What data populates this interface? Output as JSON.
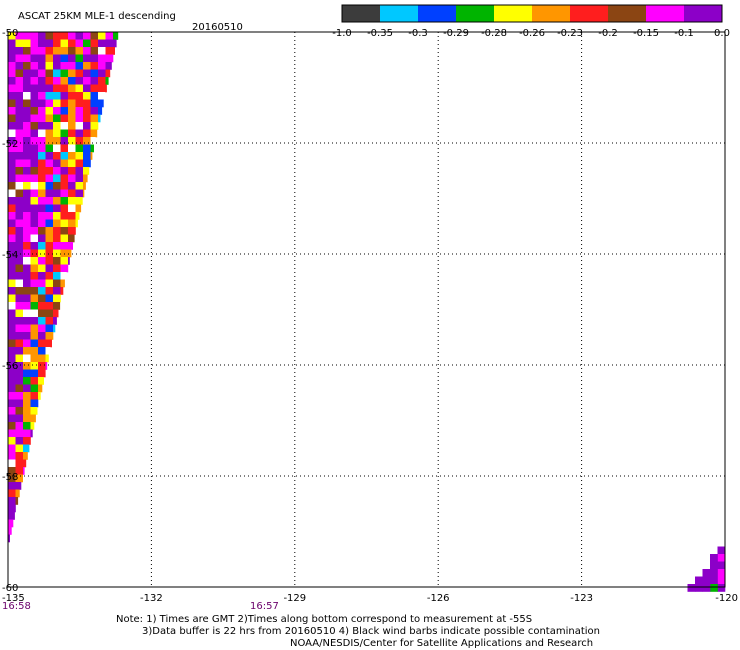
{
  "chart_data": {
    "type": "heatmap",
    "title": "ASCAT 25KM MLE-1 descending",
    "date": "20160510",
    "x_ticks": [
      "-135",
      "-132",
      "-129",
      "-126",
      "-123",
      "-120"
    ],
    "y_ticks": [
      "-50",
      "-52",
      "-54",
      "-56",
      "-58",
      "-60"
    ],
    "xlim": [
      -135,
      -120
    ],
    "ylim": [
      -60,
      -50
    ],
    "grid": true,
    "colorbar": {
      "labels": [
        "-1.0",
        "-0.35",
        "-0.3",
        "-0.29",
        "-0.28",
        "-0.26",
        "-0.23",
        "-0.2",
        "-0.15",
        "-0.1",
        "0.0"
      ],
      "colors": [
        "#3c3c3c",
        "#00c8ff",
        "#0040ff",
        "#00b400",
        "#ffff00",
        "#ff9600",
        "#ff1e1e",
        "#8b4513",
        "#ff00ff",
        "#8c00c8"
      ]
    },
    "time_labels": [
      "16:58",
      "16:57"
    ],
    "palette": [
      "#3c3c3c",
      "#00c8ff",
      "#0040ff",
      "#00b400",
      "#ffff00",
      "#ff9600",
      "#ff1e1e",
      "#8b4513",
      "#ff00ff",
      "#8c00c8",
      "#ffffff"
    ],
    "swath_main": {
      "lat_north": -50,
      "lat_south": -59.2,
      "lon_west": -135,
      "lon_east_north": -132.7,
      "lon_east_south": -135
    },
    "swath_corner": {
      "lat_north": -59,
      "lat_south": -60,
      "lon_east": -120,
      "lon_west_south": -120.85,
      "lon_west_north": -120
    }
  },
  "notes": {
    "line1": "Note: 1) Times are GMT 2)Times along bottom correspond to measurement at -55S",
    "line2": "3)Data buffer is 22 hrs from 20160510 4) Black wind barbs indicate possible contamination",
    "line3": "NOAA/NESDIS/Center for Satellite Applications and Research"
  }
}
